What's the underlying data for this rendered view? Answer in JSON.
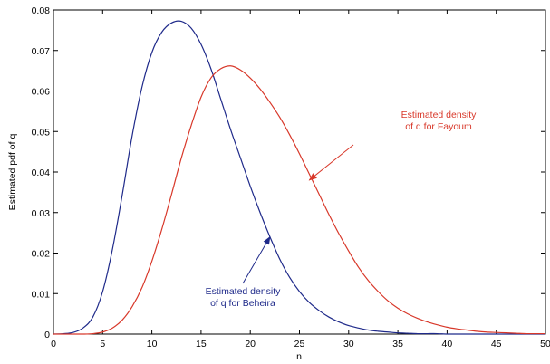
{
  "chart_data": {
    "type": "line",
    "title": "",
    "xlabel": "n",
    "ylabel": "Estimated pdf of q",
    "xlim": [
      0,
      50
    ],
    "ylim": [
      0,
      0.08
    ],
    "xticks": [
      0,
      5,
      10,
      15,
      20,
      25,
      30,
      35,
      40,
      45,
      50
    ],
    "yticks": [
      0,
      0.01,
      0.02,
      0.03,
      0.04,
      0.05,
      0.06,
      0.07,
      0.08
    ],
    "xtick_labels": [
      "0",
      "5",
      "10",
      "15",
      "20",
      "25",
      "30",
      "35",
      "40",
      "45",
      "50"
    ],
    "ytick_labels": [
      "0",
      "0.01",
      "0.02",
      "0.03",
      "0.04",
      "0.05",
      "0.06",
      "0.07",
      "0.08"
    ],
    "grid": false,
    "series": [
      {
        "name": "Beheira",
        "color": "#1f2a8a",
        "x": [
          0,
          1,
          2,
          3,
          4,
          5,
          6,
          7,
          8,
          9,
          10,
          11,
          12,
          13,
          14,
          15,
          16,
          17,
          18,
          19,
          20,
          21,
          22,
          23,
          24,
          25,
          26,
          27,
          28,
          29,
          30,
          31,
          32,
          33,
          34,
          35,
          36,
          37,
          38,
          39,
          40,
          41,
          42,
          43,
          44,
          45,
          46,
          47,
          48,
          49,
          50
        ],
        "y": [
          0,
          0.0001,
          0.0004,
          0.0015,
          0.0042,
          0.0105,
          0.021,
          0.0345,
          0.049,
          0.061,
          0.0695,
          0.0745,
          0.0768,
          0.0772,
          0.0755,
          0.0715,
          0.0655,
          0.058,
          0.0505,
          0.0435,
          0.0365,
          0.03,
          0.024,
          0.0185,
          0.014,
          0.0105,
          0.0078,
          0.0058,
          0.0042,
          0.003,
          0.0021,
          0.0015,
          0.001,
          0.0007,
          0.0005,
          0.0003,
          0.0002,
          0.0001,
          0.0001,
          0.0001,
          0,
          0,
          0,
          0,
          0,
          0,
          0,
          0,
          0,
          0,
          0
        ]
      },
      {
        "name": "Fayoum",
        "color": "#d8382a",
        "x": [
          0,
          1,
          2,
          3,
          4,
          5,
          6,
          7,
          8,
          9,
          10,
          11,
          12,
          13,
          14,
          15,
          16,
          17,
          18,
          19,
          20,
          21,
          22,
          23,
          24,
          25,
          26,
          27,
          28,
          29,
          30,
          31,
          32,
          33,
          34,
          35,
          36,
          37,
          38,
          39,
          40,
          41,
          42,
          43,
          44,
          45,
          46,
          47,
          48,
          49,
          50
        ],
        "y": [
          0,
          0,
          0,
          0,
          0.0001,
          0.0005,
          0.0015,
          0.0035,
          0.0068,
          0.0115,
          0.018,
          0.0258,
          0.0345,
          0.0435,
          0.0515,
          0.0585,
          0.0632,
          0.0655,
          0.0662,
          0.0652,
          0.0632,
          0.0605,
          0.0572,
          0.0535,
          0.0492,
          0.0445,
          0.0395,
          0.0345,
          0.0295,
          0.0248,
          0.0205,
          0.0165,
          0.0132,
          0.0105,
          0.0082,
          0.0064,
          0.005,
          0.0039,
          0.003,
          0.0023,
          0.0017,
          0.0013,
          0.001,
          0.0007,
          0.0005,
          0.0004,
          0.0003,
          0.0002,
          0.0001,
          0.0001,
          0.0001
        ]
      }
    ],
    "annotations": [
      {
        "id": "fayoum",
        "lines": [
          "Estimated density",
          "of q for Fayoum"
        ],
        "color": "#d8382a",
        "arrow_to": [
          26,
          0.038
        ]
      },
      {
        "id": "beheira",
        "lines": [
          "Estimated density",
          "of q for Beheira"
        ],
        "color": "#1f2a8a",
        "arrow_to": [
          22,
          0.024
        ]
      }
    ]
  }
}
